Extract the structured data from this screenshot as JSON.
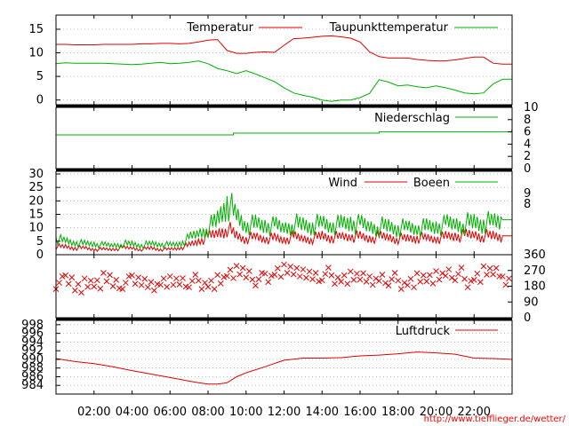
{
  "x_ticks": [
    "02:00",
    "04:00",
    "06:00",
    "08:00",
    "10:00",
    "12:00",
    "14:00",
    "16:00",
    "18:00",
    "20:00",
    "22:00"
  ],
  "credit": "http://www.tiefflieger.de/wetter/",
  "colors": {
    "red": "#e00000",
    "green": "#00b000",
    "grid": "#999999"
  },
  "chart_data": [
    {
      "type": "line",
      "x": [
        "00:00",
        "00:30",
        "01:00",
        "01:30",
        "02:00",
        "02:30",
        "03:00",
        "03:30",
        "04:00",
        "04:30",
        "05:00",
        "05:30",
        "06:00",
        "06:30",
        "07:00",
        "07:30",
        "08:00",
        "08:30",
        "09:00",
        "09:30",
        "10:00",
        "10:30",
        "11:00",
        "11:30",
        "12:00",
        "12:30",
        "13:00",
        "13:30",
        "14:00",
        "14:30",
        "15:00",
        "15:30",
        "16:00",
        "16:30",
        "17:00",
        "17:30",
        "18:00",
        "18:30",
        "19:00",
        "19:30",
        "20:00",
        "20:30",
        "21:00",
        "21:30",
        "22:00",
        "22:30",
        "23:00",
        "23:30"
      ],
      "ylim": [
        -1,
        18
      ],
      "yticks": [
        0,
        5,
        10,
        15
      ],
      "series": [
        {
          "name": "Temperatur",
          "color": "#e00000",
          "values": [
            11.8,
            11.8,
            11.7,
            11.7,
            11.7,
            11.8,
            11.8,
            11.8,
            11.8,
            11.9,
            11.9,
            12.0,
            12.0,
            11.9,
            12.0,
            12.3,
            12.7,
            12.8,
            10.5,
            9.9,
            9.9,
            10.1,
            10.2,
            10.1,
            11.6,
            13.0,
            13.1,
            13.3,
            13.5,
            13.6,
            13.4,
            13.1,
            12.3,
            10.2,
            9.2,
            8.9,
            8.9,
            8.9,
            8.6,
            8.4,
            8.3,
            8.3,
            8.5,
            8.8,
            9.1,
            9.1,
            7.8,
            7.6
          ]
        },
        {
          "name": "Taupunkttemperatur",
          "color": "#00b000",
          "values": [
            7.7,
            7.9,
            7.8,
            7.8,
            7.8,
            7.8,
            7.7,
            7.6,
            7.5,
            7.6,
            7.8,
            8.0,
            7.7,
            7.8,
            8.0,
            8.3,
            7.7,
            6.7,
            6.2,
            5.6,
            6.2,
            5.5,
            4.7,
            3.9,
            2.6,
            1.5,
            1.0,
            0.6,
            0.0,
            -0.3,
            0.0,
            0.0,
            0.5,
            1.4,
            4.3,
            3.8,
            3.0,
            3.2,
            2.8,
            2.6,
            3.0,
            2.6,
            2.1,
            1.5,
            1.3,
            1.5,
            3.4,
            4.4
          ]
        }
      ]
    },
    {
      "type": "line",
      "x": [
        "00:00",
        "08:00",
        "09:20",
        "17:00",
        "23:59"
      ],
      "ylim": [
        0,
        10
      ],
      "yticks_right": [
        0,
        2,
        4,
        6,
        8,
        10
      ],
      "series": [
        {
          "name": "Niederschlag",
          "color": "#00b000",
          "values": [
            5.5,
            5.5,
            5.8,
            6.0,
            6.3
          ]
        }
      ]
    },
    {
      "type": "line",
      "x": [
        "00:00",
        "00:30",
        "01:00",
        "01:30",
        "02:00",
        "02:30",
        "03:00",
        "03:30",
        "04:00",
        "04:30",
        "05:00",
        "05:30",
        "06:00",
        "06:30",
        "07:00",
        "07:30",
        "08:00",
        "08:30",
        "09:00",
        "09:30",
        "10:00",
        "10:30",
        "11:00",
        "11:30",
        "12:00",
        "12:30",
        "13:00",
        "13:30",
        "14:00",
        "14:30",
        "15:00",
        "15:30",
        "16:00",
        "16:30",
        "17:00",
        "17:30",
        "18:00",
        "18:30",
        "19:00",
        "19:30",
        "20:00",
        "20:30",
        "21:00",
        "21:30",
        "22:00",
        "22:30",
        "23:00",
        "23:30"
      ],
      "ylim": [
        0,
        31
      ],
      "yticks": [
        0,
        5,
        10,
        15,
        20,
        25,
        30
      ],
      "yticks_right": [
        "8",
        "9"
      ],
      "series": [
        {
          "name": "Wind",
          "color": "#e00000",
          "values": [
            3,
            3,
            2.5,
            2.5,
            2,
            2,
            2,
            2.5,
            2.5,
            2,
            2.5,
            2,
            2,
            2.5,
            3.5,
            5,
            6.5,
            8,
            10,
            7,
            6,
            6.5,
            6,
            6,
            5.5,
            6.5,
            6,
            6,
            7,
            6.5,
            6.5,
            7,
            6.5,
            6,
            6.5,
            6.5,
            6,
            6,
            6.5,
            6,
            6,
            6.5,
            7,
            7,
            7.5,
            7,
            7,
            7
          ]
        },
        {
          "name": "Boeen",
          "color": "#00b000",
          "values": [
            6,
            5,
            4.5,
            4,
            4,
            3.5,
            3.5,
            4,
            4,
            3.5,
            4,
            4,
            3.5,
            4,
            6,
            8,
            10,
            13,
            20,
            14,
            11,
            11,
            11,
            10.5,
            10,
            11.5,
            11,
            11,
            11.5,
            11,
            11,
            12,
            11,
            10.5,
            10.5,
            10.5,
            10,
            10,
            10,
            10,
            10.5,
            11,
            11.5,
            11.5,
            12,
            12,
            12,
            13
          ]
        }
      ]
    },
    {
      "type": "scatter",
      "x": [
        "00:00",
        "00:30",
        "01:00",
        "01:30",
        "02:00",
        "02:30",
        "03:00",
        "03:30",
        "04:00",
        "04:30",
        "05:00",
        "05:30",
        "06:00",
        "06:30",
        "07:00",
        "07:30",
        "08:00",
        "08:30",
        "09:00",
        "09:30",
        "10:00",
        "10:30",
        "11:00",
        "11:30",
        "12:00",
        "12:30",
        "13:00",
        "13:30",
        "14:00",
        "14:30",
        "15:00",
        "15:30",
        "16:00",
        "16:30",
        "17:00",
        "17:30",
        "18:00",
        "18:30",
        "19:00",
        "19:30",
        "20:00",
        "20:30",
        "21:00",
        "21:30",
        "22:00",
        "22:30",
        "23:00",
        "23:30"
      ],
      "ylim": [
        0,
        360
      ],
      "yticks_right": [
        0,
        90,
        180,
        270,
        360
      ],
      "series": [
        {
          "name": "",
          "color": "#e00000",
          "values": [
            200,
            230,
            180,
            200,
            190,
            220,
            180,
            200,
            230,
            210,
            180,
            200,
            200,
            190,
            210,
            200,
            200,
            220,
            250,
            260,
            230,
            220,
            240,
            270,
            280,
            260,
            240,
            220,
            250,
            230,
            230,
            240,
            230,
            200,
            210,
            220,
            200,
            210,
            230,
            220,
            230,
            240,
            250,
            210,
            240,
            270,
            260,
            200
          ]
        }
      ]
    },
    {
      "type": "line",
      "x": [
        "00:00",
        "01:00",
        "02:00",
        "03:00",
        "04:00",
        "05:00",
        "06:00",
        "07:00",
        "07:30",
        "08:00",
        "08:30",
        "09:00",
        "09:30",
        "10:00",
        "11:00",
        "12:00",
        "13:00",
        "14:00",
        "15:00",
        "16:00",
        "17:00",
        "18:00",
        "19:00",
        "20:00",
        "21:00",
        "22:00",
        "23:00",
        "23:59"
      ],
      "ylim": [
        982,
        999
      ],
      "yticks": [
        984,
        986,
        988,
        990,
        992,
        994,
        996,
        998
      ],
      "series": [
        {
          "name": "Luftdruck",
          "color": "#e00000",
          "values": [
            990.2,
            989.5,
            989.0,
            988.3,
            987.4,
            986.6,
            985.8,
            985.0,
            984.6,
            984.3,
            984.3,
            984.6,
            986.0,
            986.9,
            988.3,
            989.8,
            990.3,
            990.3,
            990.4,
            990.8,
            991.0,
            991.3,
            991.7,
            991.5,
            991.2,
            990.3,
            990.2,
            990.0
          ]
        }
      ]
    }
  ]
}
